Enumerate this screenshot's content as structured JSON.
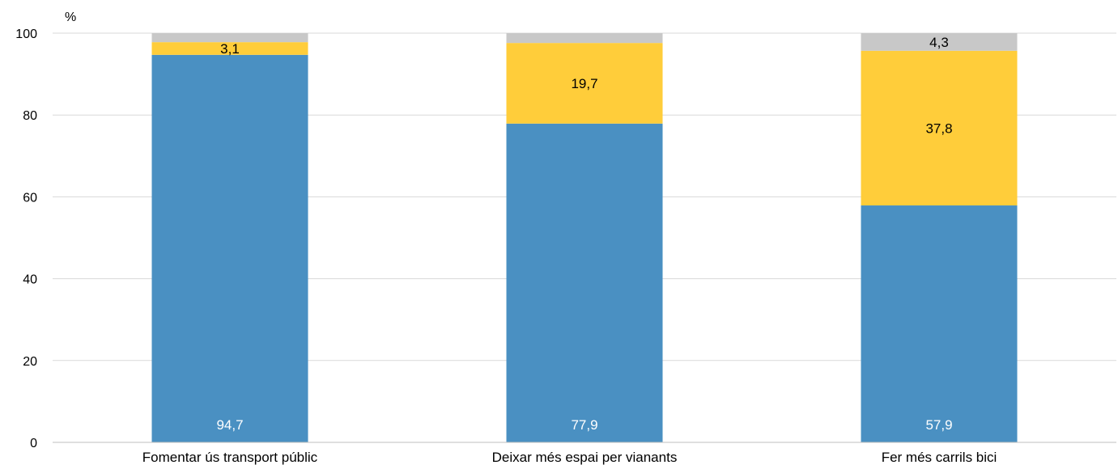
{
  "chart_data": {
    "type": "bar",
    "stacked": true,
    "title": "",
    "xlabel": "",
    "ylabel": "%",
    "ylim": [
      0,
      100
    ],
    "yticks": [
      0,
      20,
      40,
      60,
      80,
      100
    ],
    "grid": true,
    "categories": [
      "Fomentar ús transport públic",
      "Deixar més espai per vianants",
      "Fer més carrils bici"
    ],
    "series": [
      {
        "values": [
          94.7,
          77.9,
          57.9
        ],
        "color": "#4a90c2",
        "labels": [
          "94,7",
          "77,9",
          "57,9"
        ],
        "label_color": "#ffffff"
      },
      {
        "values": [
          3.1,
          19.7,
          37.8
        ],
        "color": "#ffcd3a",
        "labels": [
          "3,1",
          "19,7",
          "37,8"
        ],
        "label_color": "#000000"
      },
      {
        "values": [
          2.2,
          2.4,
          4.3
        ],
        "color": "#c8c8c8",
        "labels": [
          "",
          "",
          "4,3"
        ],
        "label_color": "#000000"
      }
    ]
  }
}
